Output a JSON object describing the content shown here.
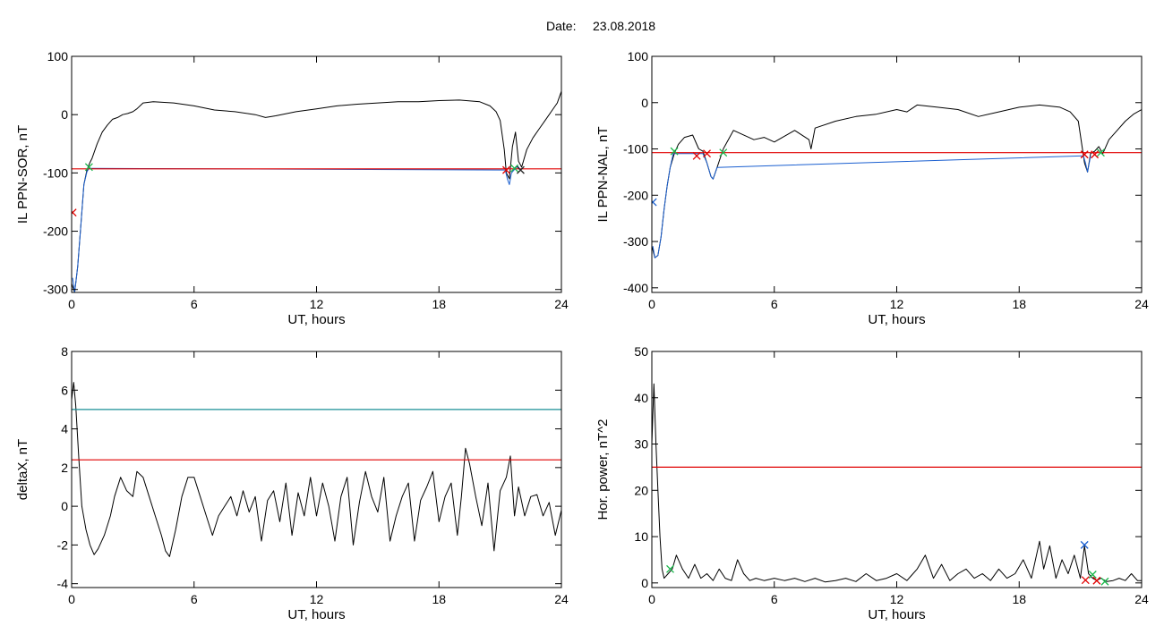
{
  "header": {
    "date_label": "Date:",
    "date_value": "23.08.2018"
  },
  "chart_data": [
    {
      "id": "p1",
      "type": "line",
      "xlabel": "UT, hours",
      "ylabel": "IL PPN-SOR, nT",
      "xlim": [
        0,
        24
      ],
      "ylim": [
        -305,
        100
      ],
      "xticks": [
        0,
        6,
        12,
        18,
        24
      ],
      "yticks": [
        -300,
        -200,
        -100,
        0,
        100
      ],
      "grid": false,
      "series": [
        {
          "color": "#000000",
          "x": [
            0,
            0.15,
            0.3,
            0.45,
            0.6,
            0.75,
            0.9,
            1.0,
            1.25,
            1.5,
            1.75,
            2.0,
            2.25,
            2.5,
            2.75,
            3.0,
            3.2,
            3.5,
            4.0,
            5.0,
            6.0,
            7.0,
            8.0,
            9.0,
            9.5,
            10.0,
            11.0,
            12.0,
            13.0,
            14.0,
            15.0,
            16.0,
            17.0,
            18.0,
            19.0,
            20.0,
            20.5,
            20.8,
            21.0,
            21.2,
            21.3,
            21.45,
            21.6,
            21.75,
            21.9,
            22.05,
            22.3,
            22.6,
            22.9,
            23.2,
            23.5,
            23.8,
            24.0
          ],
          "y": [
            -290,
            -305,
            -260,
            -190,
            -120,
            -95,
            -82,
            -75,
            -50,
            -30,
            -18,
            -8,
            -5,
            0,
            2,
            5,
            10,
            20,
            22,
            20,
            15,
            8,
            5,
            0,
            -5,
            -2,
            5,
            10,
            15,
            18,
            20,
            22,
            22,
            24,
            25,
            22,
            15,
            5,
            -10,
            -60,
            -100,
            -110,
            -55,
            -30,
            -80,
            -90,
            -60,
            -40,
            -25,
            -10,
            5,
            20,
            40
          ]
        },
        {
          "color": "#1a5fd0",
          "x": [
            0.05,
            0.15,
            0.3,
            0.45,
            0.6,
            0.75,
            0.85,
            21.25,
            21.35,
            21.45,
            21.55,
            21.85,
            22.0
          ],
          "y": [
            -280,
            -305,
            -260,
            -190,
            -120,
            -98,
            -92,
            -95,
            -110,
            -120,
            -100,
            -88,
            -95
          ]
        },
        {
          "name": "threshold",
          "color": "#e00000",
          "y": [
            -93,
            -93
          ],
          "x": [
            0,
            24
          ]
        }
      ],
      "markers": [
        {
          "x": 0.05,
          "y": -168,
          "symbol": "x",
          "color": "#e00000"
        },
        {
          "x": 0.85,
          "y": -90,
          "symbol": "x",
          "color": "#19b64a"
        },
        {
          "x": 21.3,
          "y": -95,
          "symbol": "x",
          "color": "#e00000"
        },
        {
          "x": 21.7,
          "y": -92,
          "symbol": "x",
          "color": "#19b64a"
        },
        {
          "x": 22.0,
          "y": -95,
          "symbol": "x",
          "color": "#222222"
        }
      ]
    },
    {
      "id": "p2",
      "type": "line",
      "xlabel": "UT, hours",
      "ylabel": "IL PPN-NAL, nT",
      "xlim": [
        0,
        24
      ],
      "ylim": [
        -410,
        100
      ],
      "xticks": [
        0,
        6,
        12,
        18,
        24
      ],
      "yticks": [
        -400,
        -300,
        -200,
        -100,
        0,
        100
      ],
      "grid": false,
      "series": [
        {
          "color": "#000000",
          "x": [
            0,
            0.15,
            0.3,
            0.45,
            0.6,
            0.75,
            0.9,
            1.1,
            1.3,
            1.6,
            2.0,
            2.3,
            2.5,
            2.7,
            2.9,
            3.0,
            3.2,
            3.5,
            4.0,
            5.0,
            5.5,
            6.0,
            7.0,
            7.7,
            7.8,
            8.0,
            9.0,
            10.0,
            11.0,
            12.0,
            12.5,
            13.0,
            14.0,
            15.0,
            16.0,
            17.0,
            18.0,
            19.0,
            20.0,
            20.5,
            20.9,
            21.1,
            21.2,
            21.35,
            21.5,
            21.7,
            21.9,
            22.1,
            22.4,
            22.8,
            23.2,
            23.6,
            24.0
          ],
          "y": [
            -310,
            -335,
            -330,
            -290,
            -230,
            -180,
            -140,
            -110,
            -90,
            -75,
            -70,
            -100,
            -105,
            -130,
            -160,
            -165,
            -140,
            -100,
            -60,
            -80,
            -75,
            -85,
            -60,
            -80,
            -100,
            -55,
            -40,
            -30,
            -25,
            -15,
            -20,
            -5,
            -10,
            -15,
            -30,
            -20,
            -10,
            -5,
            -10,
            -20,
            -40,
            -100,
            -130,
            -150,
            -110,
            -105,
            -95,
            -110,
            -80,
            -60,
            -40,
            -25,
            -15
          ]
        },
        {
          "color": "#1a5fd0",
          "x": [
            0.05,
            0.15,
            0.3,
            0.45,
            0.6,
            0.75,
            0.9,
            1.05,
            2.2,
            2.5,
            2.7,
            2.9,
            3.0,
            3.2,
            21.15,
            21.25,
            21.35,
            21.5
          ],
          "y": [
            -310,
            -335,
            -330,
            -290,
            -230,
            -180,
            -140,
            -110,
            -110,
            -110,
            -130,
            -160,
            -165,
            -140,
            -115,
            -130,
            -150,
            -115
          ]
        },
        {
          "name": "threshold",
          "color": "#e00000",
          "y": [
            -108,
            -108
          ],
          "x": [
            0,
            24
          ]
        }
      ],
      "markers": [
        {
          "x": 0.05,
          "y": -215,
          "symbol": "x",
          "color": "#1a5fd0"
        },
        {
          "x": 1.1,
          "y": -105,
          "symbol": "x",
          "color": "#19b64a"
        },
        {
          "x": 2.2,
          "y": -115,
          "symbol": "x",
          "color": "#e00000"
        },
        {
          "x": 2.7,
          "y": -110,
          "symbol": "x",
          "color": "#e00000"
        },
        {
          "x": 3.5,
          "y": -108,
          "symbol": "x",
          "color": "#19b64a"
        },
        {
          "x": 21.2,
          "y": -112,
          "symbol": "x",
          "color": "#e00000"
        },
        {
          "x": 21.7,
          "y": -112,
          "symbol": "x",
          "color": "#e00000"
        },
        {
          "x": 22.0,
          "y": -108,
          "symbol": "x",
          "color": "#19b64a"
        }
      ]
    },
    {
      "id": "p3",
      "type": "line",
      "xlabel": "UT, hours",
      "ylabel": "deltaX, nT",
      "xlim": [
        0,
        24
      ],
      "ylim": [
        -4.2,
        8
      ],
      "xticks": [
        0,
        6,
        12,
        18,
        24
      ],
      "yticks": [
        -4,
        -2,
        0,
        2,
        4,
        6,
        8
      ],
      "grid": false,
      "series": [
        {
          "color": "#000000",
          "x": [
            0,
            0.1,
            0.2,
            0.35,
            0.5,
            0.7,
            0.9,
            1.1,
            1.3,
            1.6,
            1.9,
            2.1,
            2.4,
            2.7,
            3.0,
            3.2,
            3.5,
            3.8,
            4.1,
            4.4,
            4.6,
            4.8,
            5.1,
            5.4,
            5.7,
            6.0,
            6.3,
            6.6,
            6.9,
            7.2,
            7.5,
            7.8,
            8.1,
            8.4,
            8.7,
            9.0,
            9.3,
            9.6,
            9.9,
            10.2,
            10.5,
            10.8,
            11.1,
            11.4,
            11.7,
            12.0,
            12.3,
            12.6,
            12.9,
            13.2,
            13.5,
            13.8,
            14.1,
            14.4,
            14.7,
            15.0,
            15.3,
            15.6,
            15.9,
            16.2,
            16.5,
            16.8,
            17.1,
            17.4,
            17.7,
            18.0,
            18.3,
            18.6,
            18.9,
            19.1,
            19.3,
            19.5,
            19.8,
            20.1,
            20.4,
            20.7,
            21.0,
            21.3,
            21.5,
            21.7,
            21.9,
            22.2,
            22.5,
            22.8,
            23.1,
            23.4,
            23.7,
            24.0
          ],
          "y": [
            5.5,
            6.4,
            5.2,
            2.5,
            0,
            -1.2,
            -2,
            -2.5,
            -2.2,
            -1.5,
            -0.5,
            0.5,
            1.5,
            0.8,
            0.5,
            1.8,
            1.5,
            0.5,
            -0.5,
            -1.5,
            -2.3,
            -2.6,
            -1.2,
            0.5,
            1.5,
            1.5,
            0.5,
            -0.5,
            -1.5,
            -0.5,
            0,
            0.5,
            -0.5,
            0.8,
            -0.3,
            0.5,
            -1.8,
            0.3,
            0.8,
            -0.8,
            1.2,
            -1.5,
            0.7,
            -0.5,
            1.5,
            -0.5,
            1.2,
            0,
            -1.8,
            0.5,
            1.5,
            -2,
            0.2,
            1.8,
            0.5,
            -0.3,
            1.5,
            -1.8,
            -0.5,
            0.5,
            1.2,
            -1.8,
            0.3,
            1,
            1.8,
            -0.8,
            0.5,
            1.2,
            -1.5,
            0.5,
            3,
            2.2,
            0.5,
            -1,
            1.2,
            -2.3,
            0.8,
            1.5,
            2.6,
            -0.5,
            1,
            -0.5,
            0.5,
            0.6,
            -0.5,
            0.2,
            -1.5,
            -0.2
          ]
        },
        {
          "name": "threshold-high",
          "color": "#1a8f96",
          "y": [
            5,
            5
          ],
          "x": [
            0,
            24
          ]
        },
        {
          "name": "threshold",
          "color": "#e00000",
          "y": [
            2.4,
            2.4
          ],
          "x": [
            0,
            24
          ]
        }
      ],
      "markers": []
    },
    {
      "id": "p4",
      "type": "line",
      "xlabel": "UT, hours",
      "ylabel": "Hor. power, nT^2",
      "xlim": [
        0,
        24
      ],
      "ylim": [
        -1,
        50
      ],
      "xticks": [
        0,
        6,
        12,
        18,
        24
      ],
      "yticks": [
        0,
        10,
        20,
        30,
        40,
        50
      ],
      "grid": false,
      "series": [
        {
          "color": "#000000",
          "x": [
            0,
            0.1,
            0.2,
            0.3,
            0.4,
            0.5,
            0.6,
            0.8,
            1.0,
            1.2,
            1.5,
            1.8,
            2.1,
            2.4,
            2.7,
            3.0,
            3.3,
            3.6,
            3.9,
            4.2,
            4.5,
            4.8,
            5.1,
            5.5,
            6.0,
            6.5,
            7.0,
            7.5,
            8.0,
            8.5,
            9.0,
            9.5,
            10.0,
            10.5,
            11.0,
            11.5,
            12.0,
            12.5,
            13.0,
            13.4,
            13.8,
            14.2,
            14.6,
            15.0,
            15.4,
            15.8,
            16.2,
            16.6,
            17.0,
            17.4,
            17.8,
            18.2,
            18.6,
            19.0,
            19.2,
            19.5,
            19.8,
            20.1,
            20.4,
            20.7,
            21.0,
            21.2,
            21.4,
            21.6,
            21.8,
            22.0,
            22.3,
            22.6,
            22.9,
            23.2,
            23.5,
            23.8,
            24.0
          ],
          "y": [
            30,
            43,
            30,
            20,
            10,
            3,
            1,
            2,
            3,
            6,
            3,
            1,
            4,
            1,
            2,
            0.5,
            3,
            1,
            0.5,
            5,
            2,
            0.5,
            1,
            0.5,
            1,
            0.5,
            1,
            0.3,
            1,
            0.2,
            0.5,
            1,
            0.3,
            2,
            0.5,
            1,
            2,
            0.5,
            3,
            6,
            1,
            4,
            0.5,
            2,
            3,
            1,
            2,
            0.5,
            3,
            1,
            2,
            5,
            1,
            9,
            3,
            8,
            1,
            5,
            2,
            6,
            1,
            8,
            2,
            1,
            0.5,
            1,
            0.3,
            0.5,
            1,
            0.5,
            2,
            0.5,
            0.5
          ]
        },
        {
          "name": "threshold",
          "color": "#e00000",
          "y": [
            25,
            25
          ],
          "x": [
            0,
            24
          ]
        }
      ],
      "markers": [
        {
          "x": 0.9,
          "y": 3,
          "symbol": "x",
          "color": "#19b64a"
        },
        {
          "x": 21.2,
          "y": 8.2,
          "symbol": "x",
          "color": "#1a5fd0"
        },
        {
          "x": 21.25,
          "y": 0.6,
          "symbol": "x",
          "color": "#e00000"
        },
        {
          "x": 21.6,
          "y": 1.8,
          "symbol": "x",
          "color": "#19b64a"
        },
        {
          "x": 21.8,
          "y": 0.5,
          "symbol": "x",
          "color": "#e00000"
        },
        {
          "x": 22.2,
          "y": 0.3,
          "symbol": "x",
          "color": "#19b64a"
        }
      ]
    }
  ]
}
